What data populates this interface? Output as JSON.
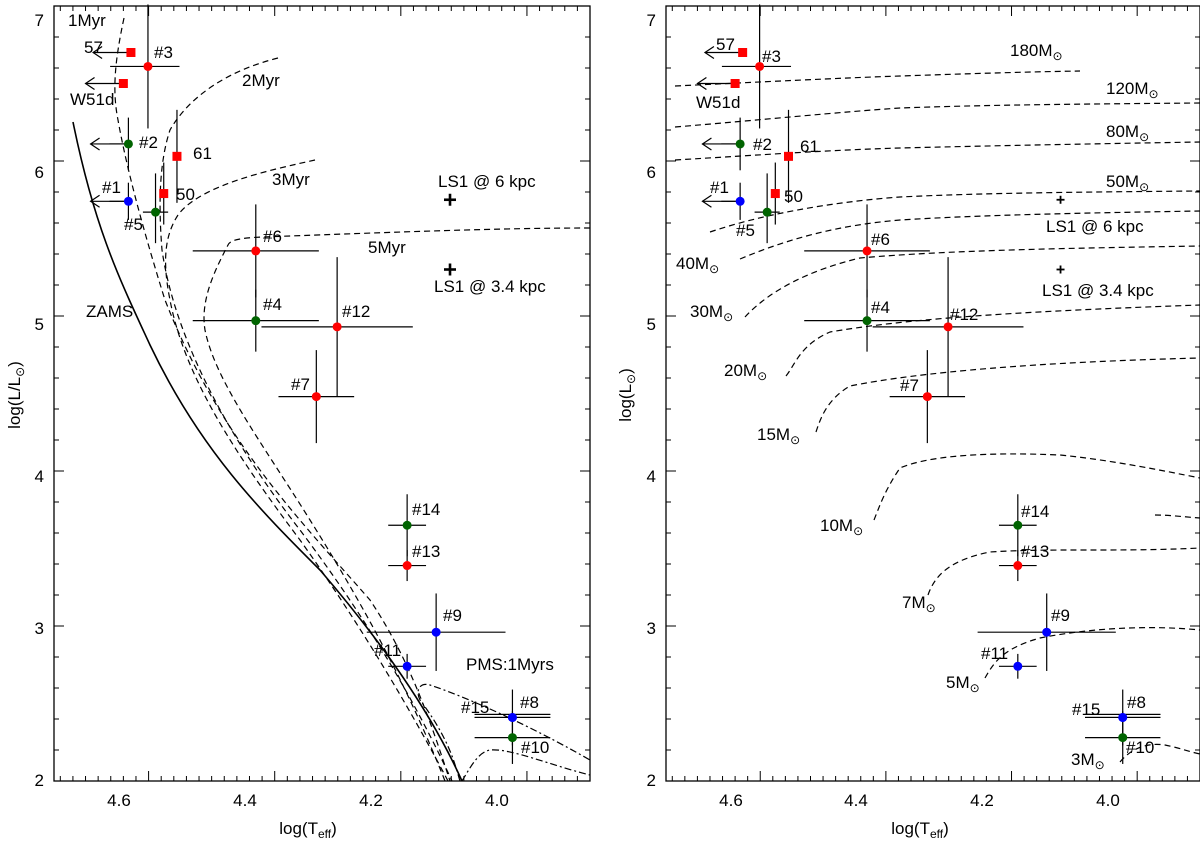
{
  "colors": {
    "red": "#ff0000",
    "green": "#006400",
    "blue": "#0000ff",
    "black": "#000000"
  },
  "chart_data": [
    {
      "type": "scatter",
      "title": "",
      "xlabel": "log(T",
      "xlabel_sub": "eff",
      "xlabel_end": ")",
      "ylabel": "log(L/L",
      "ylabel_sym": "⊙",
      "ylabel_end": ")",
      "xlim": [
        4.75,
        3.9
      ],
      "ylim": [
        2,
        7
      ],
      "xticks": [
        "4.6",
        "4.4",
        "4.2",
        "4.0"
      ],
      "yticks": [
        "2",
        "3",
        "4",
        "5",
        "6",
        "7"
      ],
      "stars": [
        {
          "label": "#1",
          "x": 4.632,
          "y": 5.74,
          "color": "blue",
          "upper_limit": true,
          "xerr": [
            0.03,
            0.0
          ],
          "yerr": [
            0.12,
            0.12
          ]
        },
        {
          "label": "#2",
          "x": 4.632,
          "y": 6.11,
          "color": "green",
          "upper_limit": true,
          "xerr": [
            0.03,
            0.0
          ],
          "yerr": [
            0.17,
            0.17
          ]
        },
        {
          "label": "#3",
          "x": 4.601,
          "y": 6.61,
          "color": "red",
          "xerr": [
            0.06,
            0.05
          ],
          "yerr": [
            0.4,
            0.4
          ]
        },
        {
          "label": "#4",
          "x": 4.43,
          "y": 4.97,
          "color": "green",
          "xerr": [
            0.1,
            0.1
          ],
          "yerr": [
            0.2,
            0.2
          ]
        },
        {
          "label": "#5",
          "x": 4.589,
          "y": 5.67,
          "color": "green",
          "xerr": [
            0.02,
            0.02
          ],
          "yerr": [
            0.2,
            0.25
          ]
        },
        {
          "label": "#6",
          "x": 4.43,
          "y": 5.42,
          "color": "red",
          "xerr": [
            0.1,
            0.1
          ],
          "yerr": [
            0.3,
            0.3
          ]
        },
        {
          "label": "#7",
          "x": 4.334,
          "y": 4.48,
          "color": "red",
          "xerr": [
            0.06,
            0.06
          ],
          "yerr": [
            0.3,
            0.3
          ]
        },
        {
          "label": "#8",
          "x": 4.023,
          "y": 2.41,
          "color": "blue",
          "xerr": [
            0.06,
            0.06
          ],
          "yerr": [
            0.18,
            0.18
          ]
        },
        {
          "label": "#9",
          "x": 4.144,
          "y": 2.96,
          "color": "blue",
          "xerr": [
            0.11,
            0.11
          ],
          "yerr": [
            0.25,
            0.25
          ]
        },
        {
          "label": "#10",
          "x": 4.023,
          "y": 2.28,
          "color": "green",
          "xerr": [
            0.06,
            0.06
          ],
          "yerr": [
            0.17,
            0.17
          ]
        },
        {
          "label": "#11",
          "x": 4.19,
          "y": 2.74,
          "color": "blue",
          "xerr": [
            0.03,
            0.03
          ],
          "yerr": [
            0.08,
            0.08
          ]
        },
        {
          "label": "#12",
          "x": 4.301,
          "y": 4.93,
          "color": "red",
          "xerr": [
            0.12,
            0.12
          ],
          "yerr": [
            0.45,
            0.45
          ]
        },
        {
          "label": "#13",
          "x": 4.19,
          "y": 3.39,
          "color": "red",
          "xerr": [
            0.03,
            0.03
          ],
          "yerr": [
            0.1,
            0.1
          ]
        },
        {
          "label": "#14",
          "x": 4.19,
          "y": 3.65,
          "color": "green",
          "xerr": [
            0.03,
            0.03
          ],
          "yerr": [
            0.2,
            0.2
          ]
        },
        {
          "label": "#15",
          "x": 4.023,
          "y": 2.41,
          "color": "blue",
          "xerr": [
            0.06,
            0.06
          ],
          "yerr": [
            0.0,
            0.0
          ]
        }
      ],
      "reference_stars": [
        {
          "label": "57",
          "x": 4.628,
          "y": 6.7
        },
        {
          "label": "W51d",
          "x": 4.64,
          "y": 6.5
        },
        {
          "label": "61",
          "x": 4.555,
          "y": 6.03
        },
        {
          "label": "50",
          "x": 4.576,
          "y": 5.79
        }
      ],
      "ls1": [
        {
          "label": "LS1 @ 6 kpc",
          "x": 4.122,
          "y": 5.75
        },
        {
          "label": "LS1 @ 3.4 kpc",
          "x": 4.122,
          "y": 5.3
        }
      ],
      "curve_labels": [
        "1Myr",
        "2Myr",
        "3Myr",
        "5Myr",
        "ZAMS",
        "PMS:1Myrs"
      ]
    },
    {
      "type": "scatter",
      "title": "",
      "xlabel": "log(T",
      "xlabel_sub": "eff",
      "xlabel_end": ")",
      "ylabel": "log(L",
      "ylabel_sym": "⊙",
      "ylabel_end": ")",
      "xlim": [
        4.75,
        3.9
      ],
      "ylim": [
        2,
        7
      ],
      "xticks": [
        "4.6",
        "4.4",
        "4.2",
        "4.0"
      ],
      "yticks": [
        "2",
        "3",
        "4",
        "5",
        "6",
        "7"
      ],
      "ls1": [
        {
          "label": "LS1 @ 6 kpc",
          "x": 4.122,
          "y": 5.75
        },
        {
          "label": "LS1 @ 3.4 kpc",
          "x": 4.122,
          "y": 5.3
        }
      ],
      "mass_tracks": [
        {
          "mass": "180M",
          "sym": "⊙"
        },
        {
          "mass": "120M",
          "sym": "⊙"
        },
        {
          "mass": "80M",
          "sym": "⊙"
        },
        {
          "mass": "50M",
          "sym": "⊙"
        },
        {
          "mass": "40M",
          "sym": "⊙"
        },
        {
          "mass": "30M",
          "sym": "⊙"
        },
        {
          "mass": "20M",
          "sym": "⊙"
        },
        {
          "mass": "15M",
          "sym": "⊙"
        },
        {
          "mass": "10M",
          "sym": "⊙"
        },
        {
          "mass": "7M",
          "sym": "⊙"
        },
        {
          "mass": "5M",
          "sym": "⊙"
        },
        {
          "mass": "3M",
          "sym": "⊙"
        }
      ]
    }
  ]
}
